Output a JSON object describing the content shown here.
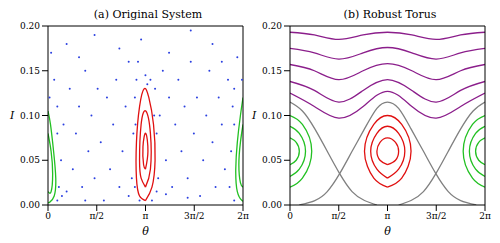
{
  "chart_data": [
    {
      "type": "line",
      "title": "(a) Original System",
      "x_label": "θ",
      "y_label": "I",
      "xlim": [
        0,
        6.2832
      ],
      "xticks": [
        0,
        {
          "value": 1.5708,
          "label": "π/2"
        },
        {
          "value": 3.1416,
          "label": "π"
        },
        {
          "value": 4.7124,
          "label": "3π/2"
        },
        {
          "value": 6.2832,
          "label": "2π"
        }
      ],
      "ylim": [
        0,
        0.2
      ],
      "yticks": [
        {
          "value": 0,
          "label": "0.00"
        },
        {
          "value": 0.05,
          "label": "0.05"
        },
        {
          "value": 0.1,
          "label": "0.10"
        },
        {
          "value": 0.15,
          "label": "0.15"
        },
        {
          "value": 0.2,
          "label": "0.20"
        }
      ],
      "series": [
        {
          "type": "scatter",
          "marker": "dot",
          "color": "#2a3fe0",
          "x": [
            0.35,
            0.42,
            0.5,
            0.3,
            0.6,
            0.7,
            0.8,
            0.9,
            1.0,
            1.1,
            1.2,
            1.3,
            1.4,
            1.5,
            1.6,
            1.7,
            1.8,
            1.9,
            2.0,
            2.1,
            2.2,
            2.3,
            2.4,
            2.5,
            2.6,
            2.7,
            2.75,
            2.8,
            2.85,
            3.14,
            3.3,
            3.45,
            3.5,
            3.55,
            3.6,
            3.7,
            3.8,
            3.9,
            4.0,
            4.1,
            4.2,
            4.3,
            4.4,
            4.5,
            4.6,
            4.7,
            4.8,
            4.9,
            5.0,
            5.1,
            5.2,
            5.3,
            5.4,
            5.5,
            5.6,
            5.7,
            5.8,
            5.9,
            5.95,
            6.0,
            0.2,
            0.1,
            0.6,
            1.5,
            2.3,
            3.0,
            3.9,
            4.6,
            5.3,
            6.1,
            1.0,
            2.9,
            5.6,
            0.05,
            6.25,
            2.95,
            3.35,
            2.8,
            3.5,
            0.3,
            6.0,
            1.2,
            4.5,
            2.6,
            3.8,
            0.45,
            5.85,
            2.82,
            3.42,
            3.2,
            0.3,
            6.0
          ],
          "values": [
            0.02,
            0.05,
            0.09,
            0.11,
            0.015,
            0.13,
            0.04,
            0.08,
            0.11,
            0.02,
            0.15,
            0.06,
            0.1,
            0.03,
            0.13,
            0.07,
            0.005,
            0.12,
            0.04,
            0.09,
            0.14,
            0.02,
            0.06,
            0.11,
            0.16,
            0.03,
            0.08,
            0.12,
            0.14,
            0.145,
            0.14,
            0.13,
            0.08,
            0.03,
            0.1,
            0.15,
            0.05,
            0.12,
            0.02,
            0.09,
            0.14,
            0.06,
            0.11,
            0.03,
            0.16,
            0.08,
            0.12,
            0.01,
            0.05,
            0.1,
            0.15,
            0.07,
            0.02,
            0.12,
            0.09,
            0.04,
            0.14,
            0.06,
            0.11,
            0.13,
            0.14,
            0.17,
            0.18,
            0.19,
            0.175,
            0.185,
            0.17,
            0.195,
            0.18,
            0.165,
            0.165,
            0.16,
            0.16,
            0.12,
            0.14,
            0.005,
            0.005,
            0.02,
            0.015,
            0.005,
            0.005,
            0.005,
            0.008,
            0.01,
            0.012,
            0.01,
            0.02,
            0.09,
            0.1,
            0.135,
            0.08,
            0.09
          ]
        },
        {
          "type": "line",
          "line_style": "solid",
          "color": "#e01010",
          "x": [
            3.14,
            3.35,
            3.45,
            3.4,
            3.25,
            3.1,
            2.95,
            2.85,
            2.85,
            2.95,
            3.14
          ],
          "values": [
            0.005,
            0.02,
            0.05,
            0.09,
            0.12,
            0.13,
            0.11,
            0.07,
            0.03,
            0.01,
            0.005
          ]
        },
        {
          "type": "line",
          "line_style": "solid",
          "color": "#e01010",
          "x": [
            3.14,
            3.3,
            3.3,
            3.15,
            3.0,
            2.95,
            3.0,
            3.14
          ],
          "values": [
            0.02,
            0.04,
            0.08,
            0.105,
            0.09,
            0.05,
            0.03,
            0.02
          ]
        },
        {
          "type": "line",
          "line_style": "solid",
          "color": "#e01010",
          "x": [
            3.14,
            3.22,
            3.15,
            3.06,
            3.08,
            3.14
          ],
          "values": [
            0.04,
            0.06,
            0.08,
            0.065,
            0.045,
            0.04
          ]
        },
        {
          "type": "line",
          "line_style": "solid",
          "color": "#22c022",
          "x": [
            0,
            0.08,
            0.18,
            0.25,
            0.2,
            0.05,
            0
          ],
          "values": [
            0.105,
            0.09,
            0.06,
            0.03,
            0.01,
            0.003,
            0.003
          ]
        },
        {
          "type": "line",
          "line_style": "solid",
          "color": "#22c022",
          "x": [
            0,
            0.1,
            0.15,
            0.1,
            0
          ],
          "values": [
            0.08,
            0.06,
            0.035,
            0.015,
            0.015
          ]
        },
        {
          "type": "line",
          "line_style": "solid",
          "color": "#22c022",
          "x": [
            6.2832,
            6.2,
            6.1,
            6.05,
            6.1,
            6.25,
            6.2832
          ],
          "values": [
            0.12,
            0.1,
            0.07,
            0.04,
            0.015,
            0.005,
            0.005
          ]
        },
        {
          "type": "line",
          "line_style": "solid",
          "color": "#22c022",
          "x": [
            6.2832,
            6.2,
            6.15,
            6.2,
            6.2832
          ],
          "values": [
            0.09,
            0.07,
            0.045,
            0.025,
            0.02
          ]
        }
      ]
    },
    {
      "type": "line",
      "title": "(b) Robust Torus",
      "x_label": "θ",
      "y_label": "I",
      "xlim": [
        0,
        6.2832
      ],
      "xticks": [
        0,
        {
          "value": 1.5708,
          "label": "π/2"
        },
        {
          "value": 3.1416,
          "label": "π"
        },
        {
          "value": 4.7124,
          "label": "3π/2"
        },
        {
          "value": 6.2832,
          "label": "2π"
        }
      ],
      "ylim": [
        0,
        0.2
      ],
      "yticks": [
        {
          "value": 0,
          "label": "0.00"
        },
        {
          "value": 0.05,
          "label": "0.05"
        },
        {
          "value": 0.1,
          "label": "0.10"
        },
        {
          "value": 0.15,
          "label": "0.15"
        },
        {
          "value": 0.2,
          "label": "0.20"
        }
      ],
      "series": [
        {
          "type": "line",
          "line_style": "solid",
          "color": "#8b1e8b",
          "x": [
            0,
            0.785,
            1.571,
            2.356,
            3.142,
            3.927,
            4.712,
            5.498,
            6.2832
          ],
          "values": [
            0.193,
            0.19,
            0.185,
            0.19,
            0.193,
            0.19,
            0.185,
            0.19,
            0.193
          ]
        },
        {
          "type": "line",
          "line_style": "solid",
          "color": "#8b1e8b",
          "x": [
            0,
            0.785,
            1.571,
            2.356,
            3.142,
            3.927,
            4.712,
            5.498,
            6.2832
          ],
          "values": [
            0.175,
            0.17,
            0.163,
            0.17,
            0.176,
            0.17,
            0.163,
            0.17,
            0.175
          ]
        },
        {
          "type": "line",
          "line_style": "solid",
          "color": "#8b1e8b",
          "x": [
            0,
            0.785,
            1.571,
            2.356,
            3.142,
            3.927,
            4.712,
            5.498,
            6.2832
          ],
          "values": [
            0.157,
            0.15,
            0.14,
            0.15,
            0.158,
            0.15,
            0.14,
            0.15,
            0.157
          ]
        },
        {
          "type": "line",
          "line_style": "solid",
          "color": "#8b1e8b",
          "x": [
            0,
            0.785,
            1.571,
            2.356,
            3.142,
            3.927,
            4.712,
            5.498,
            6.2832
          ],
          "values": [
            0.138,
            0.128,
            0.115,
            0.128,
            0.14,
            0.128,
            0.115,
            0.128,
            0.138
          ]
        },
        {
          "type": "line",
          "line_style": "solid",
          "color": "#8b1e8b",
          "x": [
            0,
            0.785,
            1.571,
            2.356,
            3.142,
            3.927,
            4.712,
            5.498,
            6.2832
          ],
          "values": [
            0.125,
            0.11,
            0.097,
            0.11,
            0.127,
            0.11,
            0.097,
            0.11,
            0.125
          ]
        },
        {
          "type": "line",
          "line_style": "solid",
          "color": "#808080",
          "x": [
            0.3,
            0.8,
            1.2,
            1.6,
            2.0,
            2.4,
            2.8,
            3.14,
            3.5,
            3.9,
            4.3,
            4.7,
            5.1,
            5.5,
            6.0
          ],
          "values": [
            0,
            0.005,
            0.015,
            0.035,
            0.06,
            0.085,
            0.108,
            0.115,
            0.108,
            0.085,
            0.06,
            0.035,
            0.015,
            0.005,
            0
          ]
        },
        {
          "type": "line",
          "line_style": "solid",
          "color": "#808080",
          "x": [
            0,
            0.4,
            0.8,
            1.2,
            1.6,
            2.0,
            2.4,
            2.8
          ],
          "values": [
            0.115,
            0.105,
            0.085,
            0.06,
            0.035,
            0.015,
            0.005,
            0
          ]
        },
        {
          "type": "line",
          "line_style": "solid",
          "color": "#808080",
          "x": [
            3.5,
            3.9,
            4.3,
            4.7,
            5.1,
            5.5,
            5.9,
            6.2832
          ],
          "values": [
            0,
            0.005,
            0.015,
            0.035,
            0.06,
            0.085,
            0.105,
            0.115
          ]
        },
        {
          "type": "line",
          "line_style": "solid",
          "color": "#e01010",
          "x": [
            3.14,
            3.6,
            3.9,
            3.6,
            3.14,
            2.7,
            2.4,
            2.7,
            3.14
          ],
          "values": [
            0.02,
            0.03,
            0.06,
            0.09,
            0.1,
            0.09,
            0.06,
            0.03,
            0.02
          ]
        },
        {
          "type": "line",
          "line_style": "solid",
          "color": "#e01010",
          "x": [
            3.14,
            3.5,
            3.7,
            3.5,
            3.14,
            2.8,
            2.6,
            2.8,
            3.14
          ],
          "values": [
            0.03,
            0.04,
            0.06,
            0.08,
            0.088,
            0.08,
            0.06,
            0.04,
            0.03
          ]
        },
        {
          "type": "line",
          "line_style": "solid",
          "color": "#e01010",
          "x": [
            3.14,
            3.4,
            3.5,
            3.4,
            3.14,
            2.9,
            2.8,
            2.9,
            3.14
          ],
          "values": [
            0.045,
            0.05,
            0.06,
            0.07,
            0.075,
            0.07,
            0.06,
            0.05,
            0.045
          ]
        },
        {
          "type": "line",
          "line_style": "solid",
          "color": "#22c022",
          "x": [
            0,
            0.4,
            0.7,
            0.4,
            0
          ],
          "values": [
            0.1,
            0.09,
            0.06,
            0.03,
            0.02
          ]
        },
        {
          "type": "line",
          "line_style": "solid",
          "color": "#22c022",
          "x": [
            0,
            0.3,
            0.5,
            0.3,
            0
          ],
          "values": [
            0.088,
            0.08,
            0.06,
            0.04,
            0.032
          ]
        },
        {
          "type": "line",
          "line_style": "solid",
          "color": "#22c022",
          "x": [
            0,
            0.2,
            0.3,
            0.2,
            0
          ],
          "values": [
            0.075,
            0.07,
            0.06,
            0.05,
            0.045
          ]
        },
        {
          "type": "line",
          "line_style": "solid",
          "color": "#22c022",
          "x": [
            6.2832,
            5.88,
            5.58,
            5.88,
            6.2832
          ],
          "values": [
            0.1,
            0.09,
            0.06,
            0.03,
            0.02
          ]
        },
        {
          "type": "line",
          "line_style": "solid",
          "color": "#22c022",
          "x": [
            6.2832,
            5.98,
            5.78,
            5.98,
            6.2832
          ],
          "values": [
            0.088,
            0.08,
            0.06,
            0.04,
            0.032
          ]
        },
        {
          "type": "line",
          "line_style": "solid",
          "color": "#22c022",
          "x": [
            6.2832,
            6.08,
            5.98,
            6.08,
            6.2832
          ],
          "values": [
            0.075,
            0.07,
            0.06,
            0.05,
            0.045
          ]
        }
      ]
    }
  ]
}
